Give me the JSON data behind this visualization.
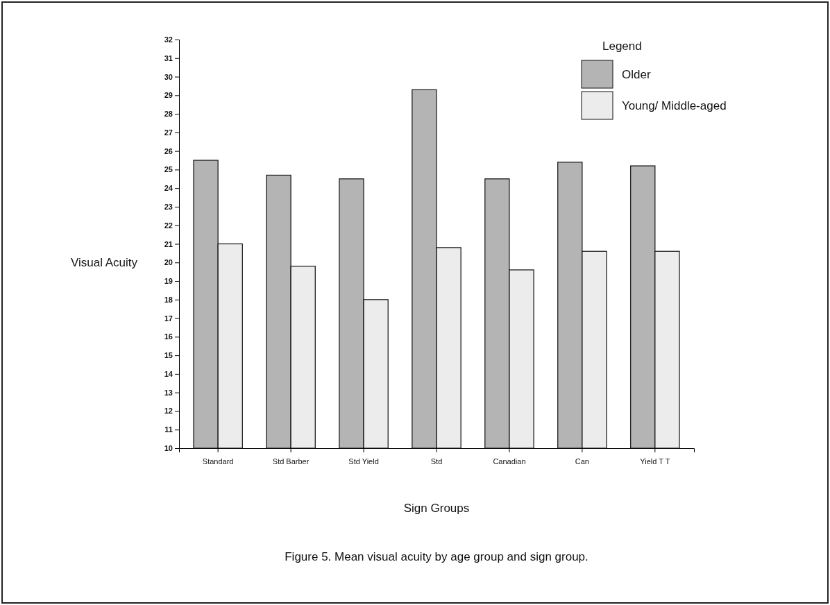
{
  "chart_data": {
    "type": "bar",
    "xlabel": "Sign Groups",
    "ylabel": "Visual Acuity",
    "legend_title": "Legend",
    "categories": [
      "Standard",
      "Std Barber",
      "Std Yield",
      "Std",
      "Canadian",
      "Can",
      "Yield T T"
    ],
    "series": [
      {
        "name": "Older",
        "color": "#b4b4b4",
        "values": [
          25.5,
          24.7,
          24.5,
          29.3,
          24.5,
          25.4,
          25.2
        ]
      },
      {
        "name": "Young/ Middle-aged",
        "color": "#ececec",
        "values": [
          21.0,
          19.8,
          18.0,
          20.8,
          19.6,
          20.6,
          20.6
        ]
      }
    ],
    "ylim": [
      10,
      32
    ],
    "yticks": [
      10,
      11,
      12,
      13,
      14,
      15,
      16,
      17,
      18,
      19,
      20,
      21,
      22,
      23,
      24,
      25,
      26,
      27,
      28,
      29,
      30,
      31,
      32
    ],
    "legend": "top right",
    "annotations": [
      "Figure 5.  Mean visual acuity by age group and sign group."
    ]
  }
}
